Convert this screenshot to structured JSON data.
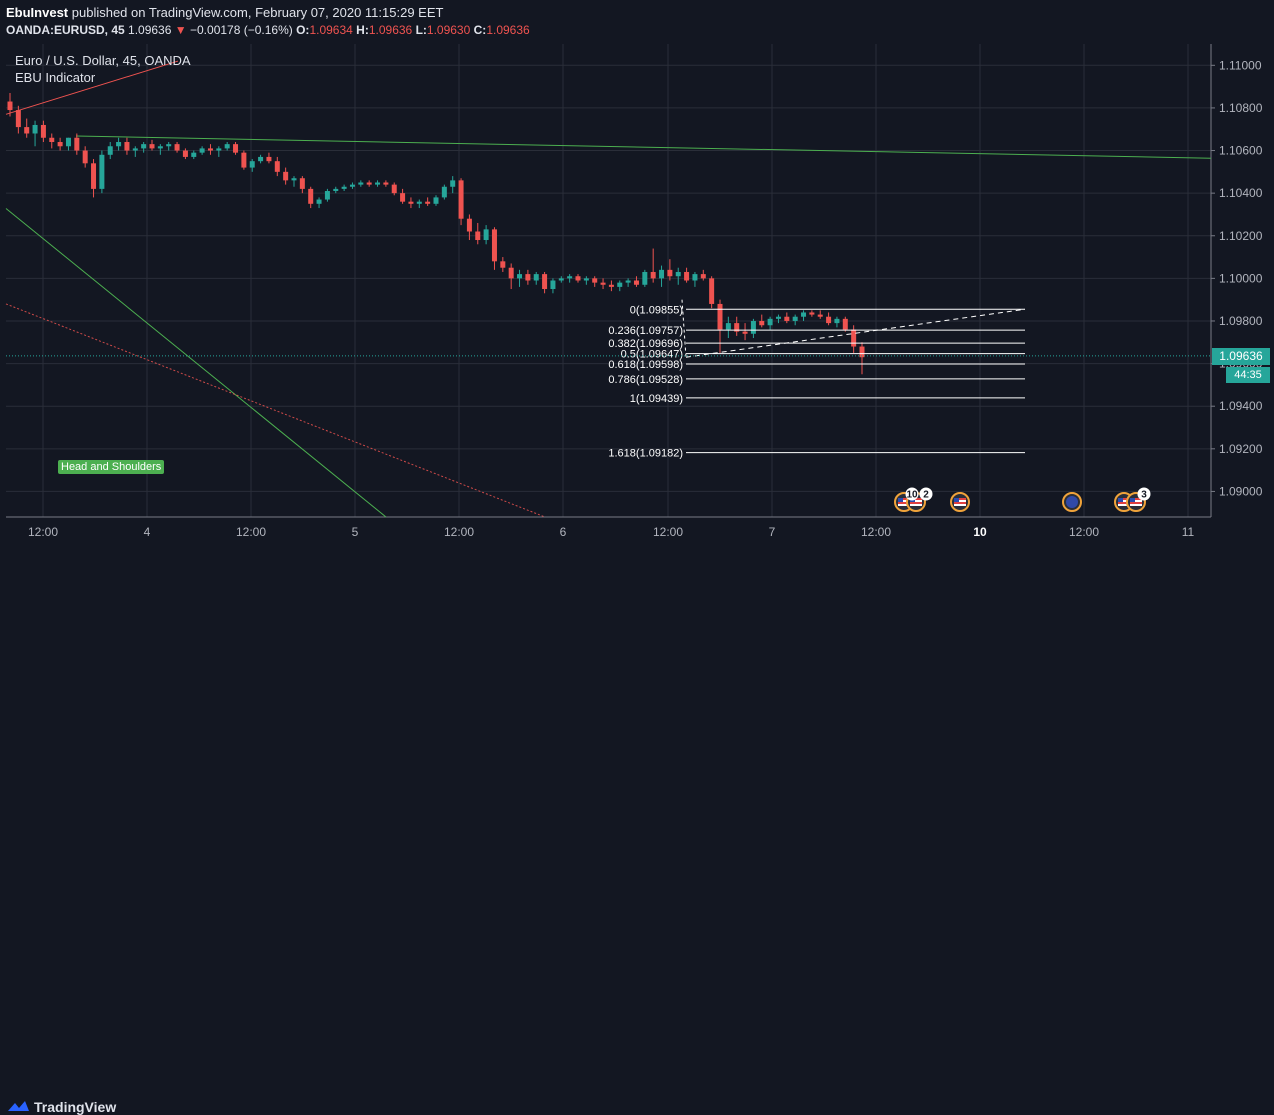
{
  "header": {
    "author": "EbuInvest",
    "published_text": "published on TradingView.com, February 07, 2020 11:15:29 EET",
    "symbol": "OANDA:EURUSD, 45",
    "last": "1.09636",
    "change_arrow": "▼",
    "change": "−0.00178 (−0.16%)",
    "o_label": "O:",
    "o_value": "1.09634",
    "h_label": "H:",
    "h_value": "1.09636",
    "l_label": "L:",
    "l_value": "1.09630",
    "c_label": "C:",
    "c_value": "1.09636"
  },
  "legend": {
    "title": "Euro / U.S. Dollar, 45, OANDA",
    "indicator": "EBU Indicator"
  },
  "markers": {
    "price_tag": "1.09636",
    "countdown": "44:35",
    "pattern_label": "Head and Shoulders"
  },
  "event_badges": [
    "10",
    "2",
    "3"
  ],
  "branding": {
    "name": "TradingView"
  },
  "colors": {
    "background": "#131722",
    "grid": "#2a2e39",
    "up": "#26a69a",
    "down": "#ef5350",
    "trend_green": "#4caf50",
    "trend_red": "#ef5350",
    "fib": "#ffffff",
    "price_tag": "#26a69a"
  },
  "chart_data": {
    "type": "candlestick",
    "y_ticks": [
      "1.11000",
      "1.10800",
      "1.10600",
      "1.10400",
      "1.10200",
      "1.10000",
      "1.09800",
      "1.09600",
      "1.09400",
      "1.09200",
      "1.09000"
    ],
    "ylim": [
      1.0888,
      1.111
    ],
    "x_ticks": [
      "12:00",
      "4",
      "12:00",
      "5",
      "12:00",
      "6",
      "12:00",
      "7",
      "12:00",
      "10",
      "12:00",
      "11"
    ],
    "fib_levels": [
      {
        "label": "0(1.09855)",
        "value": 1.09855
      },
      {
        "label": "0.236(1.09757)",
        "value": 1.09757
      },
      {
        "label": "0.382(1.09696)",
        "value": 1.09696
      },
      {
        "label": "0.5(1.09647)",
        "value": 1.09647
      },
      {
        "label": "0.618(1.09598)",
        "value": 1.09598
      },
      {
        "label": "0.786(1.09528)",
        "value": 1.09528
      },
      {
        "label": "1(1.09439)",
        "value": 1.09439
      },
      {
        "label": "1.618(1.09182)",
        "value": 1.09182
      }
    ],
    "current_price": 1.09636,
    "candles": [
      [
        1.1083,
        1.1087,
        1.1076,
        1.1079
      ],
      [
        1.1079,
        1.1081,
        1.1068,
        1.1071
      ],
      [
        1.1071,
        1.1075,
        1.1066,
        1.1068
      ],
      [
        1.1068,
        1.1074,
        1.1062,
        1.1072
      ],
      [
        1.1072,
        1.1074,
        1.1064,
        1.1066
      ],
      [
        1.1066,
        1.1068,
        1.1061,
        1.1064
      ],
      [
        1.1064,
        1.1066,
        1.106,
        1.1062
      ],
      [
        1.1062,
        1.1066,
        1.106,
        1.1066
      ],
      [
        1.1066,
        1.1068,
        1.1058,
        1.106
      ],
      [
        1.106,
        1.1062,
        1.1052,
        1.1054
      ],
      [
        1.1054,
        1.1056,
        1.1038,
        1.1042
      ],
      [
        1.1042,
        1.106,
        1.104,
        1.1058
      ],
      [
        1.1058,
        1.1064,
        1.1056,
        1.1062
      ],
      [
        1.1062,
        1.1066,
        1.106,
        1.1064
      ],
      [
        1.1064,
        1.1066,
        1.1058,
        1.106
      ],
      [
        1.106,
        1.1062,
        1.1057,
        1.1061
      ],
      [
        1.1061,
        1.1064,
        1.1059,
        1.1063
      ],
      [
        1.1063,
        1.1065,
        1.106,
        1.1061
      ],
      [
        1.1061,
        1.1063,
        1.1058,
        1.1062
      ],
      [
        1.1062,
        1.1064,
        1.106,
        1.1063
      ],
      [
        1.1063,
        1.1064,
        1.1059,
        1.106
      ],
      [
        1.106,
        1.1061,
        1.1056,
        1.1057
      ],
      [
        1.1057,
        1.106,
        1.1056,
        1.1059
      ],
      [
        1.1059,
        1.1062,
        1.1058,
        1.1061
      ],
      [
        1.1061,
        1.1063,
        1.1058,
        1.106
      ],
      [
        1.106,
        1.1062,
        1.1057,
        1.1061
      ],
      [
        1.1061,
        1.1064,
        1.106,
        1.1063
      ],
      [
        1.1063,
        1.1064,
        1.1058,
        1.1059
      ],
      [
        1.1059,
        1.106,
        1.1051,
        1.1052
      ],
      [
        1.1052,
        1.1056,
        1.105,
        1.1055
      ],
      [
        1.1055,
        1.1058,
        1.1054,
        1.1057
      ],
      [
        1.1057,
        1.1059,
        1.1054,
        1.1055
      ],
      [
        1.1055,
        1.1057,
        1.1048,
        1.105
      ],
      [
        1.105,
        1.1052,
        1.1044,
        1.1046
      ],
      [
        1.1046,
        1.1048,
        1.1043,
        1.1047
      ],
      [
        1.1047,
        1.1048,
        1.104,
        1.1042
      ],
      [
        1.1042,
        1.1043,
        1.1033,
        1.1035
      ],
      [
        1.1035,
        1.1038,
        1.1033,
        1.1037
      ],
      [
        1.1037,
        1.1042,
        1.1036,
        1.1041
      ],
      [
        1.1041,
        1.1043,
        1.104,
        1.1042
      ],
      [
        1.1042,
        1.1044,
        1.1041,
        1.1043
      ],
      [
        1.1043,
        1.1045,
        1.1042,
        1.1044
      ],
      [
        1.1044,
        1.1046,
        1.1043,
        1.1045
      ],
      [
        1.1045,
        1.1046,
        1.1043,
        1.1044
      ],
      [
        1.1044,
        1.1046,
        1.1043,
        1.1045
      ],
      [
        1.1045,
        1.1046,
        1.1043,
        1.1044
      ],
      [
        1.1044,
        1.1045,
        1.1039,
        1.104
      ],
      [
        1.104,
        1.1042,
        1.1035,
        1.1036
      ],
      [
        1.1036,
        1.1038,
        1.1033,
        1.1035
      ],
      [
        1.1035,
        1.1037,
        1.1033,
        1.1036
      ],
      [
        1.1036,
        1.1038,
        1.1034,
        1.1035
      ],
      [
        1.1035,
        1.1039,
        1.1034,
        1.1038
      ],
      [
        1.1038,
        1.1044,
        1.1037,
        1.1043
      ],
      [
        1.1043,
        1.1048,
        1.104,
        1.1046
      ],
      [
        1.1046,
        1.1047,
        1.1025,
        1.1028
      ],
      [
        1.1028,
        1.103,
        1.1018,
        1.1022
      ],
      [
        1.1022,
        1.1026,
        1.1016,
        1.1018
      ],
      [
        1.1018,
        1.1025,
        1.1016,
        1.1023
      ],
      [
        1.1023,
        1.1024,
        1.1004,
        1.1008
      ],
      [
        1.1008,
        1.101,
        1.1003,
        1.1005
      ],
      [
        1.1005,
        1.1007,
        1.0995,
        1.1
      ],
      [
        1.1,
        1.1004,
        1.0996,
        1.1002
      ],
      [
        1.1002,
        1.1004,
        1.0997,
        1.0999
      ],
      [
        1.0999,
        1.1003,
        1.0997,
        1.1002
      ],
      [
        1.1002,
        1.1003,
        1.0993,
        1.0995
      ],
      [
        1.0995,
        1.1,
        1.0993,
        1.0999
      ],
      [
        1.0999,
        1.1001,
        1.0998,
        1.1
      ],
      [
        1.1,
        1.1002,
        1.0998,
        1.1001
      ],
      [
        1.1001,
        1.1002,
        1.0998,
        1.0999
      ],
      [
        1.0999,
        1.1001,
        1.0997,
        1.1
      ],
      [
        1.1,
        1.1001,
        1.0996,
        1.0998
      ],
      [
        1.0998,
        1.1,
        1.0995,
        1.0997
      ],
      [
        1.0997,
        1.0999,
        1.0994,
        1.0996
      ],
      [
        1.0996,
        1.0999,
        1.0994,
        1.0998
      ],
      [
        1.0998,
        1.1,
        1.0996,
        1.0999
      ],
      [
        1.0999,
        1.1001,
        1.0996,
        1.0997
      ],
      [
        1.0997,
        1.1004,
        1.0996,
        1.1003
      ],
      [
        1.1003,
        1.1014,
        1.0998,
        1.1
      ],
      [
        1.1,
        1.1006,
        1.0996,
        1.1004
      ],
      [
        1.1004,
        1.1009,
        1.0999,
        1.1001
      ],
      [
        1.1001,
        1.1005,
        1.0997,
        1.1003
      ],
      [
        1.1003,
        1.1005,
        1.0998,
        1.0999
      ],
      [
        1.0999,
        1.1003,
        1.0996,
        1.1002
      ],
      [
        1.1002,
        1.1004,
        1.0999,
        1.1
      ],
      [
        1.1,
        1.1001,
        1.0986,
        1.0988
      ],
      [
        1.0988,
        1.099,
        1.0965,
        1.0976
      ],
      [
        1.0976,
        1.0982,
        1.0972,
        1.0979
      ],
      [
        1.0979,
        1.0982,
        1.0973,
        1.0975
      ],
      [
        1.0975,
        1.0979,
        1.0971,
        1.0974
      ],
      [
        1.0974,
        1.0981,
        1.0972,
        1.098
      ],
      [
        1.098,
        1.0983,
        1.0977,
        1.0978
      ],
      [
        1.0978,
        1.0982,
        1.0976,
        1.0981
      ],
      [
        1.0981,
        1.0983,
        1.0979,
        1.0982
      ],
      [
        1.0982,
        1.0984,
        1.0979,
        1.098
      ],
      [
        1.098,
        1.0983,
        1.0978,
        1.0982
      ],
      [
        1.0982,
        1.0985,
        1.098,
        1.0984
      ],
      [
        1.0984,
        1.0985,
        1.0982,
        1.0983
      ],
      [
        1.0983,
        1.0985,
        1.0981,
        1.0982
      ],
      [
        1.0982,
        1.0984,
        1.0978,
        1.0979
      ],
      [
        1.0979,
        1.0982,
        1.0977,
        1.0981
      ],
      [
        1.0981,
        1.0982,
        1.0975,
        1.0976
      ],
      [
        1.0976,
        1.0978,
        1.0965,
        1.0968
      ],
      [
        1.0968,
        1.097,
        1.0955,
        1.0963
      ]
    ]
  }
}
